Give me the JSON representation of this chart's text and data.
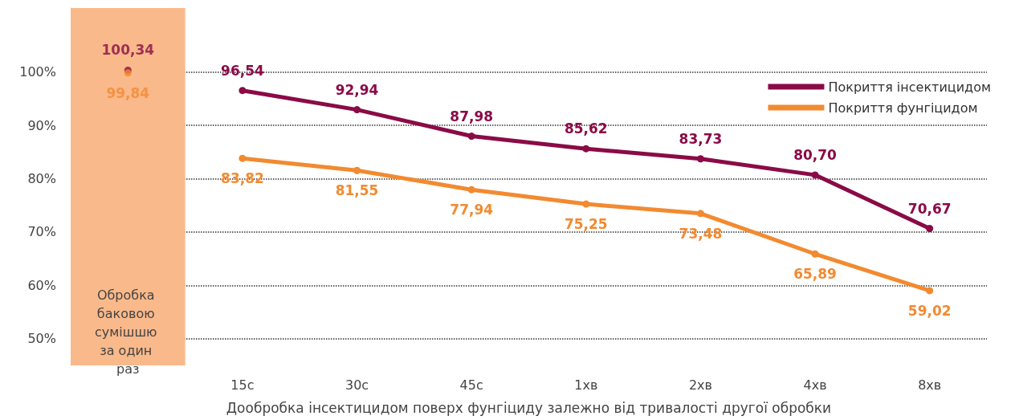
{
  "chart_data": {
    "type": "line",
    "xlabel": "Дообробка інсектицидом поверх фунгіциду залежно від тривалості другої обробки",
    "categories": [
      "Обробка баковою сумішшю за один раз",
      "15с",
      "30с",
      "45с",
      "1хв",
      "2хв",
      "4хв",
      "8хв"
    ],
    "series": [
      {
        "name": "Покриття інсектицидом",
        "color": "#8a0b46",
        "values": [
          null,
          96.54,
          92.94,
          87.98,
          85.62,
          83.73,
          80.7,
          70.67
        ],
        "value_labels": [
          null,
          "96,54",
          "92,94",
          "87,98",
          "85,62",
          "83,73",
          "80,70",
          "70,67"
        ]
      },
      {
        "name": "Покриття фунгіцидом",
        "color": "#f28a30",
        "values": [
          null,
          83.82,
          81.55,
          77.94,
          75.25,
          73.48,
          65.89,
          59.02
        ],
        "value_labels": [
          null,
          "83,82",
          "81,55",
          "77,94",
          "75,25",
          "73,48",
          "65,89",
          "59,02"
        ]
      },
      {
        "type": "scatter",
        "color": "#8a0b46",
        "x": [
          "Обробка баковою сумішшю за один раз"
        ],
        "values": [
          100.34
        ],
        "value_labels": [
          "100,34"
        ]
      },
      {
        "type": "scatter",
        "color": "#f28a30",
        "x": [
          "Обробка баковою сумішшю за один раз"
        ],
        "values": [
          99.84
        ],
        "value_labels": [
          "99,84"
        ]
      }
    ],
    "bands": [
      {
        "axis": "x",
        "from": "Обробка баковою сумішшю за один раз",
        "to": "Обробка баковою сумішшю за один раз",
        "color": "#f9b98a"
      }
    ],
    "ylim": [
      45,
      112
    ],
    "yticks": [
      {
        "value": 50,
        "label": "50%"
      },
      {
        "value": 60,
        "label": "60%"
      },
      {
        "value": 70,
        "label": "70%"
      },
      {
        "value": 80,
        "label": "80%"
      },
      {
        "value": 90,
        "label": "90%"
      },
      {
        "value": 100,
        "label": "100%"
      }
    ],
    "grid": "y",
    "legend": "top right",
    "marker": "circle",
    "line_style": "solid"
  }
}
